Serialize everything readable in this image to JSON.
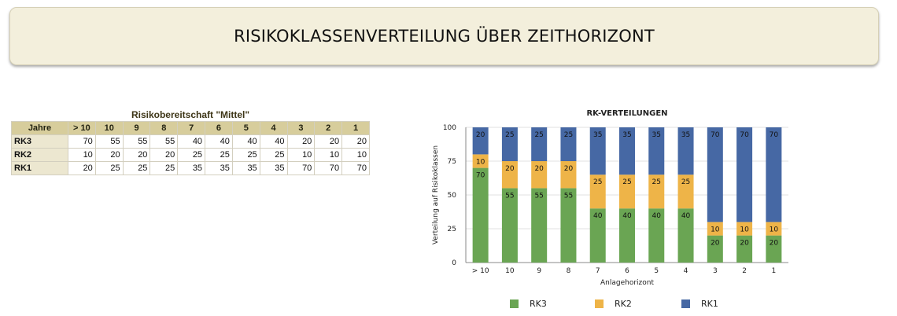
{
  "header": {
    "title": "RISIKOKLASSENVERTEILUNG ÜBER ZEITHORIZONT"
  },
  "table": {
    "title": "Risikobereitschaft \"Mittel\"",
    "header_label": "Jahre",
    "columns": [
      "> 10",
      "10",
      "9",
      "8",
      "7",
      "6",
      "5",
      "4",
      "3",
      "2",
      "1"
    ],
    "rows": [
      {
        "label": "RK3",
        "values": [
          70,
          55,
          55,
          55,
          40,
          40,
          40,
          40,
          20,
          20,
          20
        ]
      },
      {
        "label": "RK2",
        "values": [
          10,
          20,
          20,
          20,
          25,
          25,
          25,
          25,
          10,
          10,
          10
        ]
      },
      {
        "label": "RK1",
        "values": [
          20,
          25,
          25,
          25,
          35,
          35,
          35,
          35,
          70,
          70,
          70
        ]
      }
    ]
  },
  "chart_data": {
    "type": "bar",
    "stacked": true,
    "title": "RK-VERTEILUNGEN",
    "xlabel": "Anlagehorizont",
    "ylabel": "Verteilung auf Risikoklassen",
    "categories": [
      "> 10",
      "10",
      "9",
      "8",
      "7",
      "6",
      "5",
      "4",
      "3",
      "2",
      "1"
    ],
    "ylim": [
      0,
      100
    ],
    "yticks": [
      0,
      25,
      50,
      75,
      100
    ],
    "grid": true,
    "legend_position": "bottom",
    "series": [
      {
        "name": "RK3",
        "color": "#6aa553",
        "values": [
          70,
          55,
          55,
          55,
          40,
          40,
          40,
          40,
          20,
          20,
          20
        ]
      },
      {
        "name": "RK2",
        "color": "#eeb448",
        "values": [
          10,
          20,
          20,
          20,
          25,
          25,
          25,
          25,
          10,
          10,
          10
        ]
      },
      {
        "name": "RK1",
        "color": "#4668a4",
        "values": [
          20,
          25,
          25,
          25,
          35,
          35,
          35,
          35,
          70,
          70,
          70
        ]
      }
    ]
  }
}
